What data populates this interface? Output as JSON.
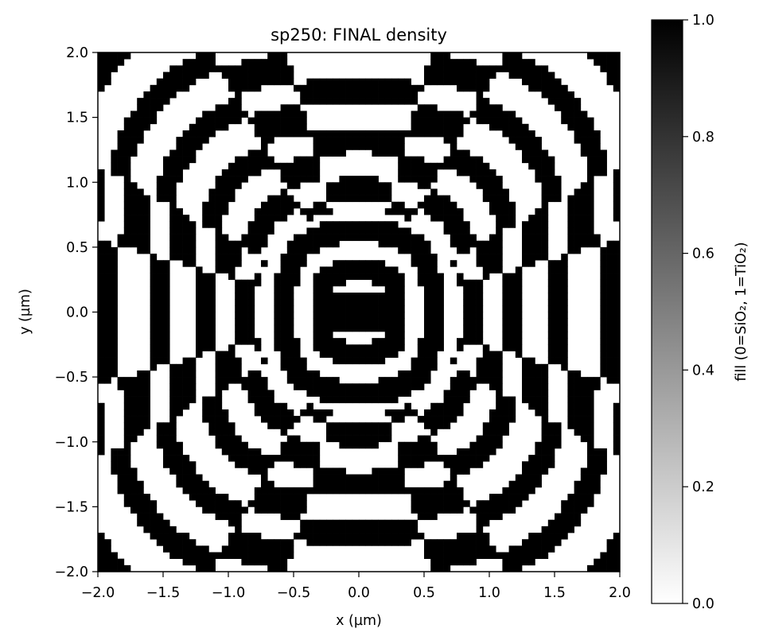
{
  "chart_data": {
    "type": "heatmap",
    "title": "sp250: FINAL density",
    "xlabel": "x (µm)",
    "ylabel": "y (µm)",
    "xlim": [
      -2.0,
      2.0
    ],
    "ylim": [
      -2.0,
      2.0
    ],
    "xticks": [
      "−2.0",
      "−1.5",
      "−1.0",
      "−0.5",
      "0.0",
      "0.5",
      "1.0",
      "1.5",
      "2.0"
    ],
    "yticks": [
      "−2.0",
      "−1.5",
      "−1.0",
      "−0.5",
      "0.0",
      "0.5",
      "1.0",
      "1.5",
      "2.0"
    ],
    "grid": false,
    "grid_resolution": 80,
    "pattern": "concentric-rings-with-dark-core",
    "ring_radii_um": [
      0.32,
      0.62,
      0.95,
      1.32,
      1.72,
      2.12,
      2.55
    ],
    "core": {
      "center_um": [
        0.0,
        0.0
      ],
      "half_width_um": 0.35,
      "half_height_um": 0.17,
      "value": 1.0
    },
    "colormap": {
      "name": "gray_r",
      "low_color": "#ffffff",
      "high_color": "#000000"
    },
    "colorbar": {
      "label": "fill (0=SiO₂, 1=TiO₂)",
      "range": [
        0.0,
        1.0
      ],
      "ticks": [
        "0.0",
        "0.2",
        "0.4",
        "0.6",
        "0.8",
        "1.0"
      ]
    }
  }
}
